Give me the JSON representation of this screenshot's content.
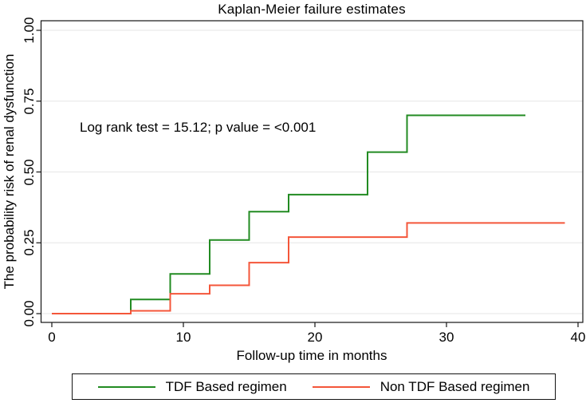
{
  "figure": {
    "title": "Kaplan-Meier failure estimates",
    "annotation": "Log rank test = 15.12; p value = <0.001",
    "x_axis": {
      "label": "Follow-up time in months",
      "tick_labels": [
        "0",
        "10",
        "20",
        "30",
        "40"
      ]
    },
    "y_axis": {
      "label": "The probability risk of renal dysfunction",
      "tick_labels": [
        "0.00",
        "0.25",
        "0.50",
        "0.75",
        "1.00"
      ]
    },
    "legend": {
      "items": [
        {
          "label": "TDF Based regimen",
          "color": "#228b22"
        },
        {
          "label": "Non TDF Based regimen",
          "color": "#f4563a"
        }
      ]
    }
  },
  "chart_data": {
    "type": "line",
    "subtype": "step",
    "title": "Kaplan-Meier failure estimates",
    "xlabel": "Follow-up time in months",
    "ylabel": "The probability risk of renal dysfunction",
    "xlim": [
      0,
      40
    ],
    "ylim": [
      0,
      1
    ],
    "xticks": [
      0,
      10,
      20,
      30,
      40
    ],
    "yticks": [
      0,
      0.25,
      0.5,
      0.75,
      1
    ],
    "grid": true,
    "grid_color": "#e6e6e6",
    "axis_color": "#141414",
    "legend_position": "bottom",
    "annotation": "Log rank test = 15.12; p value = <0.001",
    "series": [
      {
        "name": "TDF Based regimen",
        "color": "#228b22",
        "step_points": [
          [
            0,
            0
          ],
          [
            6,
            0.05
          ],
          [
            9,
            0.14
          ],
          [
            12,
            0.26
          ],
          [
            15,
            0.36
          ],
          [
            18,
            0.42
          ],
          [
            24,
            0.57
          ],
          [
            27,
            0.7
          ],
          [
            36,
            0.7
          ]
        ]
      },
      {
        "name": "Non TDF Based regimen",
        "color": "#f4563a",
        "step_points": [
          [
            0,
            0
          ],
          [
            6,
            0.01
          ],
          [
            9,
            0.07
          ],
          [
            12,
            0.1
          ],
          [
            15,
            0.18
          ],
          [
            18,
            0.27
          ],
          [
            27,
            0.32
          ],
          [
            39,
            0.32
          ]
        ]
      }
    ]
  }
}
